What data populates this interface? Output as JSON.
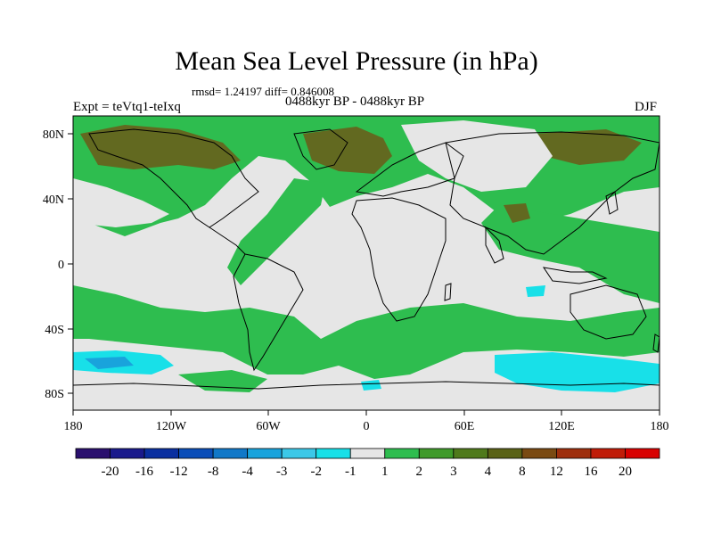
{
  "title": "Mean Sea Level Pressure (in hPa)",
  "stats": "rmsd= 1.24197 diff= 0.846008",
  "left_label": "Expt = teVtq1-teIxq",
  "center_label": "0488kyr BP - 0488kyr BP",
  "right_label": "DJF",
  "map": {
    "lon_ticks": [
      "180",
      "120W",
      "60W",
      "0",
      "60E",
      "120E",
      "180"
    ],
    "lat_ticks": [
      "80N",
      "40N",
      "0",
      "40S",
      "80S"
    ],
    "background_color": "#e6e6e6"
  },
  "colorbar": {
    "colors": [
      "#2a0f6e",
      "#1a1a8c",
      "#0a2fa0",
      "#0a4db8",
      "#1178c8",
      "#19a3dc",
      "#3cc8e8",
      "#18e0e8",
      "#e6e6e6",
      "#2ebd4f",
      "#3f9a2a",
      "#4f7a1c",
      "#5a6216",
      "#7a4a12",
      "#9e2e0c",
      "#c01c08",
      "#d80000"
    ],
    "labels": [
      "-20",
      "-16",
      "-12",
      "-8",
      "-4",
      "-3",
      "-2",
      "-1",
      "1",
      "2",
      "3",
      "4",
      "8",
      "12",
      "16",
      "20"
    ]
  }
}
